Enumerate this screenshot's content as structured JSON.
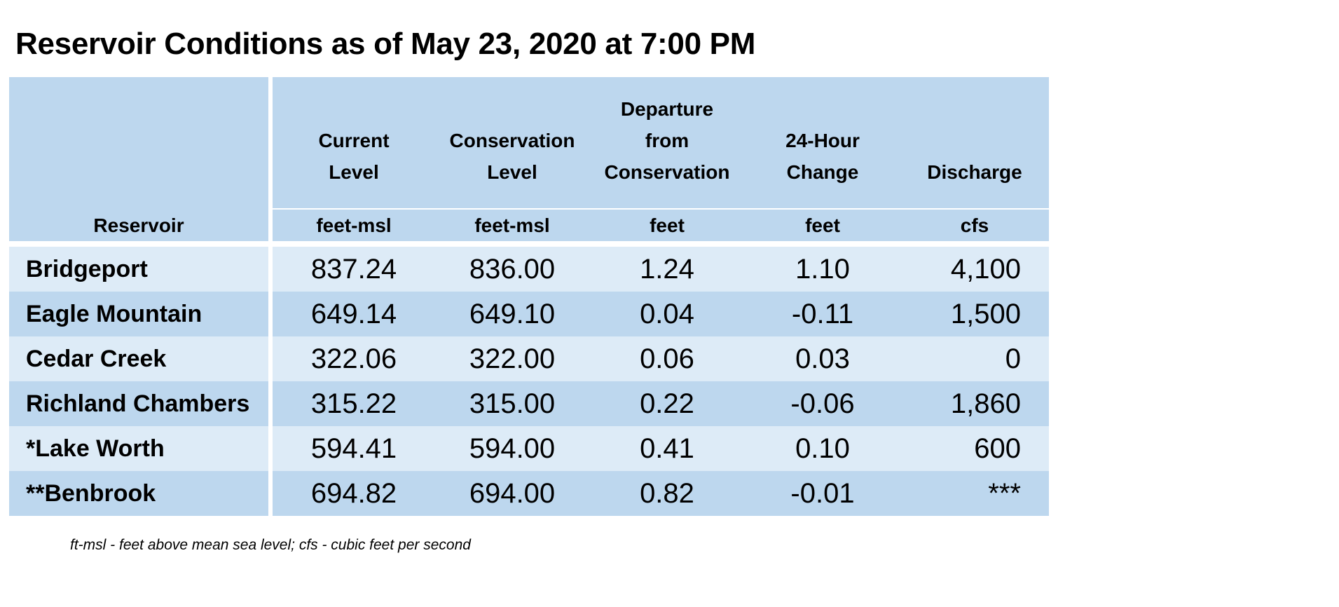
{
  "title": "Reservoir Conditions as of May 23, 2020 at 7:00 PM",
  "columns": [
    {
      "lines": [
        "",
        "",
        "",
        "Reservoir"
      ],
      "unit": ""
    },
    {
      "lines": [
        "",
        "Current",
        "Level"
      ],
      "unit": "feet-msl"
    },
    {
      "lines": [
        "",
        "Conservation",
        "Level"
      ],
      "unit": "feet-msl"
    },
    {
      "lines": [
        "Departure",
        "from",
        "Conservation"
      ],
      "unit": "feet"
    },
    {
      "lines": [
        "",
        "24-Hour",
        "Change"
      ],
      "unit": "feet"
    },
    {
      "lines": [
        "",
        "",
        "Discharge"
      ],
      "unit": "cfs"
    }
  ],
  "rows": [
    {
      "name": "Bridgeport",
      "current": "837.24",
      "conservation": "836.00",
      "departure": "1.24",
      "change": "1.10",
      "discharge": "4,100"
    },
    {
      "name": "Eagle Mountain",
      "current": "649.14",
      "conservation": "649.10",
      "departure": "0.04",
      "change": "-0.11",
      "discharge": "1,500"
    },
    {
      "name": "Cedar Creek",
      "current": "322.06",
      "conservation": "322.00",
      "departure": "0.06",
      "change": "0.03",
      "discharge": "0"
    },
    {
      "name": "Richland Chambers",
      "current": "315.22",
      "conservation": "315.00",
      "departure": "0.22",
      "change": "-0.06",
      "discharge": "1,860"
    },
    {
      "name": "*Lake Worth",
      "current": "594.41",
      "conservation": "594.00",
      "departure": "0.41",
      "change": "0.10",
      "discharge": "600"
    },
    {
      "name": "**Benbrook",
      "current": "694.82",
      "conservation": "694.00",
      "departure": "0.82",
      "change": "-0.01",
      "discharge": "***"
    }
  ],
  "footnote": "ft-msl - feet above mean sea level; cfs - cubic feet per second",
  "colors": {
    "header": "#bdd7ee",
    "row_light": "#ddebf7",
    "row_dark": "#bdd7ee"
  }
}
